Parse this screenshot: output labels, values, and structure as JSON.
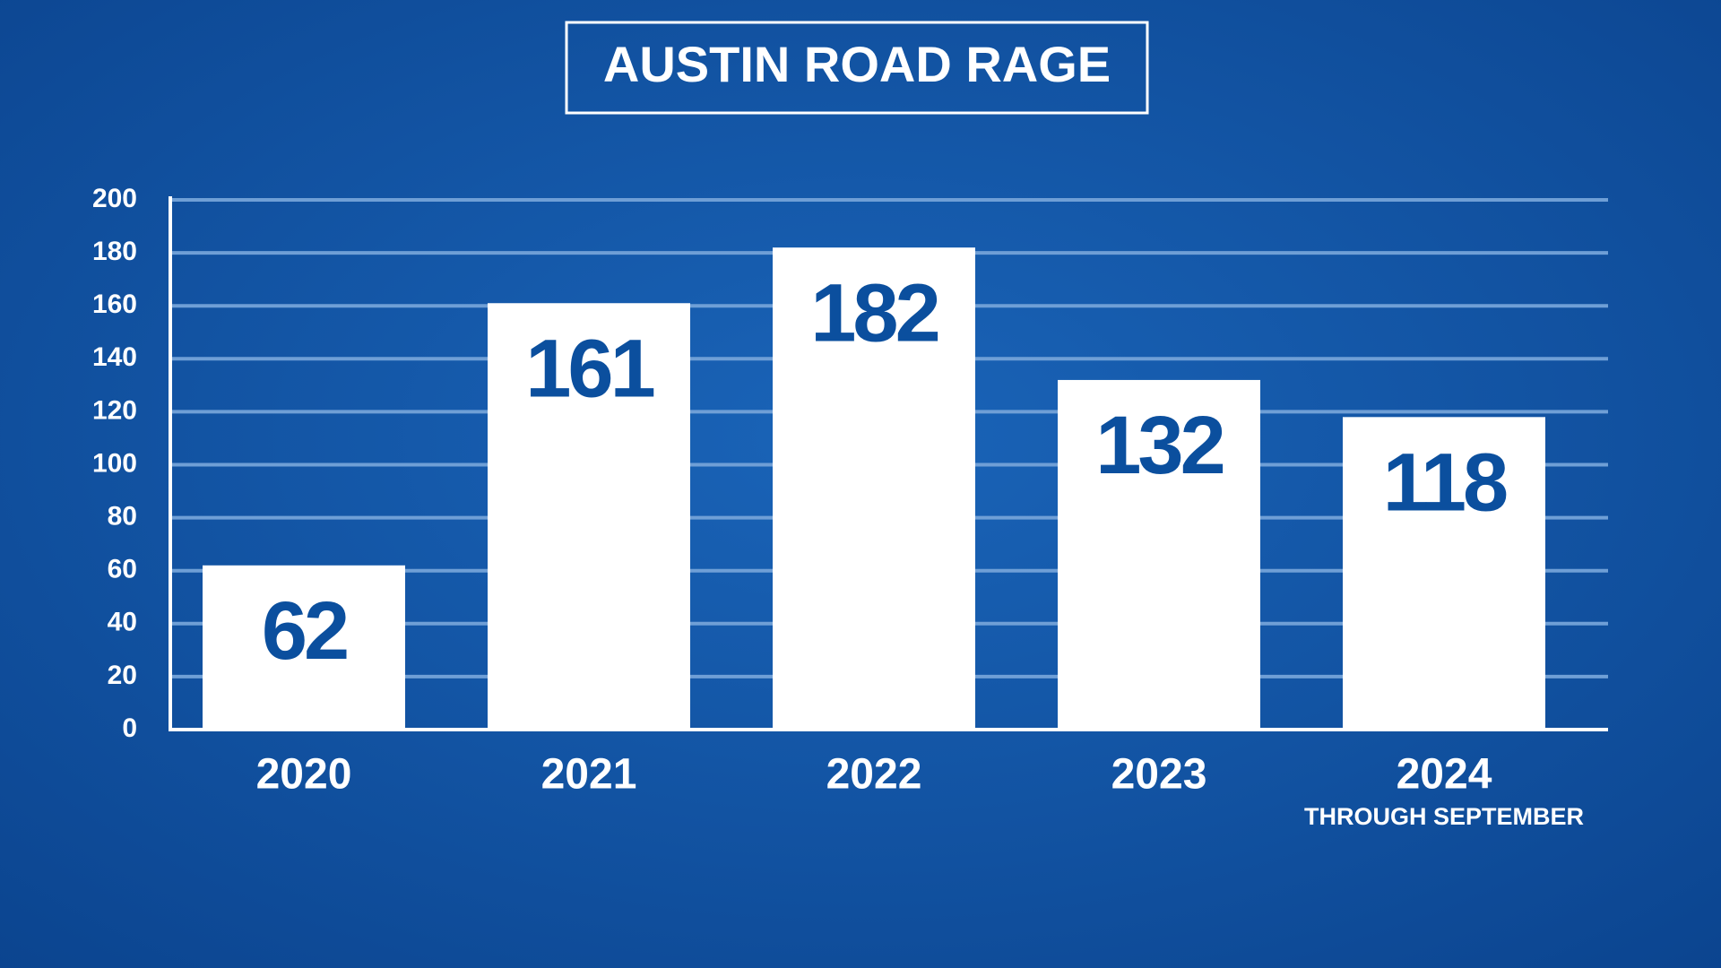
{
  "chart_data": {
    "type": "bar",
    "title": "AUSTIN ROAD RAGE",
    "categories": [
      "2020",
      "2021",
      "2022",
      "2023",
      "2024"
    ],
    "values": [
      62,
      161,
      182,
      132,
      118
    ],
    "annotation": "THROUGH SEPTEMBER",
    "color": "#ffffff",
    "label_color": "#0b4f9e",
    "ylim": [
      0,
      200
    ],
    "yticks": [
      0,
      20,
      40,
      60,
      80,
      100,
      120,
      140,
      160,
      180,
      200
    ],
    "grid": true
  }
}
